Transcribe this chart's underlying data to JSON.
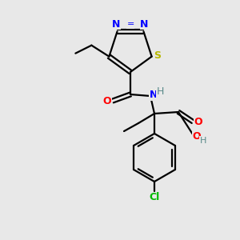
{
  "bg_color": "#e8e8e8",
  "bond_color": "#000000",
  "atom_colors": {
    "N": "#0000ff",
    "O": "#ff0000",
    "S": "#b8b800",
    "Cl": "#00bb00",
    "H": "#5a8a8a",
    "C": "#000000"
  }
}
